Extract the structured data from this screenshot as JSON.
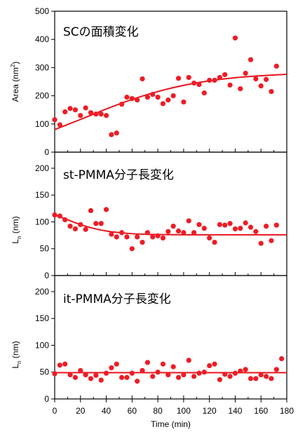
{
  "figure": {
    "xlabel": "Time (min)",
    "xticks": [
      "0",
      "20",
      "40",
      "60",
      "80",
      "100",
      "120",
      "140",
      "160",
      "180"
    ],
    "marker_color": "#ee1c25",
    "fit_color": "#e8141c"
  },
  "chart_data": [
    {
      "type": "scatter",
      "title": "SCの面積変化",
      "ylabel_main": "Area (nm",
      "ylabel_sup": "2",
      "ylabel_end": ")",
      "ylim": [
        0,
        500
      ],
      "xlim": [
        0,
        180
      ],
      "yticks": [
        "0",
        "100",
        "200",
        "300",
        "400",
        "500"
      ],
      "points": {
        "x": [
          0,
          4,
          8,
          12,
          16,
          20,
          24,
          28,
          32,
          36,
          40,
          44,
          48,
          52,
          56,
          60,
          64,
          68,
          72,
          76,
          80,
          84,
          88,
          92,
          96,
          100,
          104,
          108,
          112,
          116,
          120,
          124,
          128,
          132,
          136,
          140,
          144,
          148,
          152,
          156,
          160,
          164,
          168,
          172
        ],
        "y": [
          115,
          97,
          143,
          155,
          150,
          130,
          157,
          140,
          135,
          135,
          130,
          62,
          68,
          170,
          195,
          190,
          185,
          260,
          195,
          205,
          195,
          172,
          185,
          200,
          262,
          178,
          265,
          245,
          240,
          210,
          255,
          255,
          265,
          275,
          238,
          405,
          225,
          280,
          328,
          260,
          235,
          258,
          215,
          305
        ]
      },
      "fit": {
        "x": [
          0,
          20,
          40,
          60,
          80,
          100,
          120,
          140,
          160,
          180
        ],
        "y": [
          80,
          116,
          153,
          187,
          215,
          237,
          253,
          264,
          271,
          276
        ]
      }
    },
    {
      "type": "scatter",
      "title": "st-PMMA分子長変化",
      "ylabel_main": "L",
      "ylabel_sub": "n",
      "ylabel_end": " (nm)",
      "ylim": [
        0,
        230
      ],
      "xlim": [
        0,
        180
      ],
      "yticks": [
        "0",
        "50",
        "100",
        "150",
        "200"
      ],
      "points": {
        "x": [
          0,
          4,
          8,
          12,
          16,
          20,
          24,
          28,
          32,
          36,
          40,
          44,
          48,
          52,
          56,
          60,
          64,
          68,
          72,
          76,
          80,
          84,
          88,
          92,
          96,
          100,
          104,
          108,
          112,
          116,
          120,
          124,
          128,
          132,
          136,
          140,
          144,
          148,
          152,
          156,
          160,
          164,
          168,
          172
        ],
        "y": [
          113,
          111,
          104,
          92,
          87,
          95,
          86,
          121,
          97,
          97,
          123,
          77,
          72,
          80,
          72,
          50,
          72,
          62,
          80,
          72,
          74,
          70,
          82,
          92,
          83,
          80,
          102,
          80,
          95,
          88,
          70,
          62,
          95,
          94,
          97,
          87,
          88,
          98,
          90,
          82,
          60,
          92,
          65,
          94
        ]
      },
      "fit": {
        "x": [
          0,
          10,
          20,
          30,
          40,
          50,
          60,
          70,
          80,
          100,
          120,
          140,
          160,
          180
        ],
        "y": [
          113,
          104,
          95,
          88,
          83,
          80,
          78,
          77,
          76.5,
          76,
          76,
          76,
          76,
          76
        ]
      }
    },
    {
      "type": "scatter",
      "title": "it-PMMA分子長変化",
      "ylabel_main": "L",
      "ylabel_sub": "n",
      "ylabel_end": " (nm)",
      "ylim": [
        0,
        230
      ],
      "xlim": [
        0,
        180
      ],
      "yticks": [
        "0",
        "50",
        "100",
        "150",
        "200"
      ],
      "points": {
        "x": [
          0,
          4,
          8,
          12,
          16,
          20,
          24,
          28,
          32,
          36,
          40,
          44,
          48,
          52,
          56,
          60,
          64,
          68,
          72,
          76,
          80,
          84,
          88,
          92,
          96,
          100,
          104,
          108,
          112,
          116,
          120,
          124,
          128,
          132,
          136,
          140,
          144,
          148,
          152,
          156,
          160,
          164,
          168,
          172,
          176
        ],
        "y": [
          47,
          63,
          65,
          45,
          40,
          53,
          45,
          38,
          44,
          35,
          48,
          58,
          65,
          40,
          40,
          48,
          33,
          53,
          68,
          42,
          50,
          65,
          45,
          60,
          40,
          45,
          72,
          42,
          48,
          50,
          62,
          65,
          36,
          46,
          42,
          48,
          52,
          55,
          38,
          38,
          45,
          42,
          38,
          55,
          75
        ]
      },
      "fit": {
        "x": [
          0,
          180
        ],
        "y": [
          49,
          49
        ]
      }
    }
  ]
}
